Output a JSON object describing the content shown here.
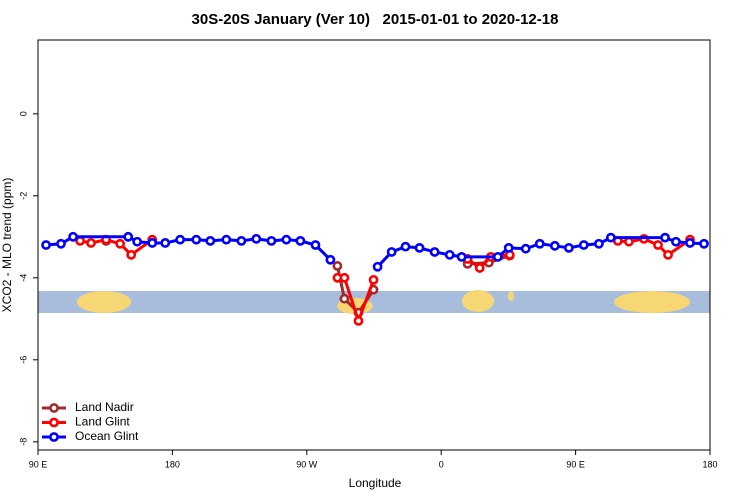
{
  "chart_data": {
    "type": "line",
    "title": "30S-20S January (Ver 10)   2015-01-01 to 2020-12-18",
    "x_label": "Longitude",
    "y_label": "XCO2 - MLO trend (ppm)",
    "xlim": [
      90,
      540
    ],
    "xticks": [
      {
        "value": 90,
        "label": "90 E"
      },
      180,
      {
        "value": 270,
        "label": "90 W"
      },
      {
        "value": 360,
        "label": "0"
      },
      {
        "value": 450,
        "label": "90 E"
      },
      {
        "value": 540,
        "label": "180"
      }
    ],
    "ylim": [
      -8.2,
      1.8
    ],
    "yticks": [
      0,
      -2,
      -4,
      -6,
      -8
    ],
    "legend": "bottom-left",
    "series": [
      {
        "name": "Land Nadir",
        "color": "#a52a2a",
        "x": [
          135.6,
          null,
          290.5,
          295.2,
          304.6,
          314.7,
          null,
          377.7,
          391.9,
          405.9
        ],
        "values": [
          -3.1,
          null,
          -3.71,
          -4.51,
          -4.85,
          -4.29,
          null,
          -3.66,
          -3.63,
          -3.46
        ]
      },
      {
        "name": "Land Glint",
        "color": "#ff0000",
        "x": [
          118.2,
          125.5,
          135.6,
          145.0,
          152.4,
          166.5,
          null,
          290.5,
          295.2,
          304.6,
          314.7,
          null,
          377.7,
          385.8,
          393.2,
          405.9,
          null,
          478.3,
          485.7,
          495.8,
          505.2,
          511.9,
          526.6
        ],
        "values": [
          -3.1,
          -3.15,
          -3.07,
          -3.17,
          -3.44,
          -3.07,
          null,
          -4.0,
          -4.0,
          -5.05,
          -4.05,
          null,
          -3.54,
          -3.76,
          -3.49,
          -3.44,
          null,
          -3.1,
          -3.12,
          -3.05,
          -3.2,
          -3.44,
          -3.07
        ]
      },
      {
        "name": "Ocean Glint",
        "color": "#0000ff",
        "x": [
          95.4,
          105.4,
          113.5,
          150.4,
          156.4,
          166.5,
          175.2,
          185.2,
          196.0,
          205.4,
          216.1,
          226.2,
          236.2,
          246.3,
          256.3,
          265.7,
          275.8,
          285.8,
          null,
          317.4,
          326.8,
          336.1,
          345.5,
          355.6,
          365.7,
          373.7,
          397.9,
          405.2,
          416.6,
          426.0,
          436.1,
          445.5,
          455.5,
          465.6,
          473.6,
          509.9,
          517.2,
          526.6,
          536.0
        ],
        "values": [
          -3.2,
          -3.17,
          -3.0,
          -3.0,
          -3.12,
          -3.15,
          -3.15,
          -3.07,
          -3.07,
          -3.1,
          -3.07,
          -3.1,
          -3.05,
          -3.1,
          -3.07,
          -3.1,
          -3.2,
          -3.56,
          null,
          -3.73,
          -3.37,
          -3.24,
          -3.27,
          -3.37,
          -3.44,
          -3.49,
          -3.49,
          -3.27,
          -3.29,
          -3.17,
          -3.22,
          -3.27,
          -3.2,
          -3.17,
          -3.02,
          -3.02,
          -3.12,
          -3.15,
          -3.17
        ]
      }
    ]
  }
}
